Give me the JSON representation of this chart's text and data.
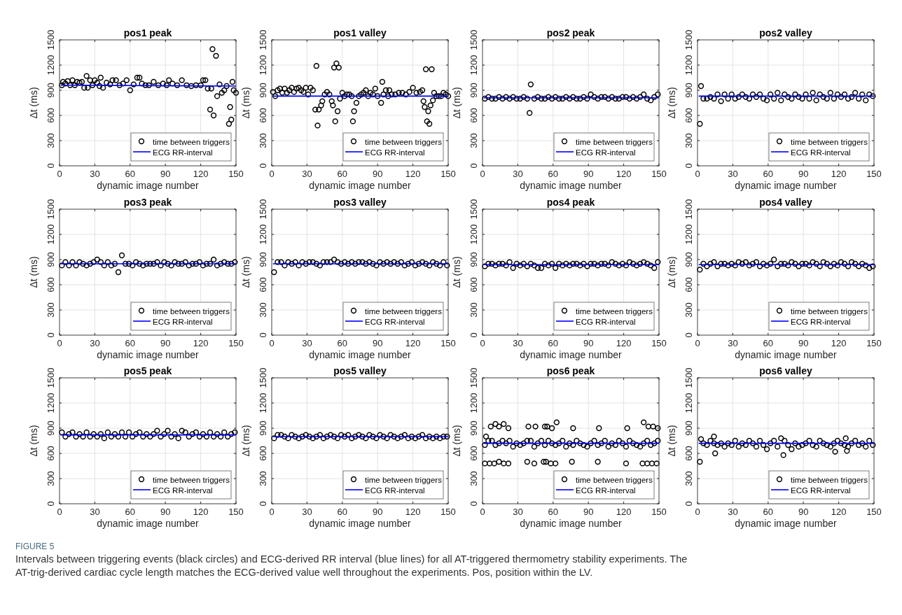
{
  "chart_data": [
    {
      "type": "scatter",
      "title": "pos1 peak",
      "xlabel": "dynamic image number",
      "ylabel": "Δt (ms)",
      "xlim": [
        0,
        150
      ],
      "xticks": [
        0,
        30,
        60,
        90,
        120,
        150
      ],
      "ylim": [
        0,
        1500
      ],
      "yticks": [
        0,
        300,
        600,
        900,
        1200,
        1500
      ],
      "grid": true,
      "legend": "bottom right",
      "marker": "circle",
      "series": [
        {
          "name": "time between triggers",
          "type": "scatter",
          "color": "#000000",
          "x": [
            2,
            3,
            5,
            7,
            9,
            11,
            13,
            15,
            17,
            19,
            21,
            23,
            24,
            26,
            28,
            30,
            32,
            34,
            35,
            37,
            40,
            43,
            45,
            48,
            51,
            54,
            57,
            60,
            63,
            66,
            68,
            70,
            73,
            76,
            80,
            84,
            88,
            91,
            93,
            96,
            100,
            104,
            108,
            112,
            116,
            120,
            122,
            124,
            126,
            128,
            129,
            130,
            131,
            133,
            134,
            136,
            138,
            140,
            142,
            144,
            145,
            146,
            147,
            148,
            150
          ],
          "values": [
            960,
            1000,
            980,
            1010,
            960,
            1020,
            960,
            1000,
            990,
            1000,
            930,
            1070,
            930,
            1020,
            960,
            1020,
            990,
            950,
            1050,
            930,
            990,
            970,
            1020,
            1020,
            960,
            980,
            1020,
            900,
            970,
            1050,
            1050,
            980,
            960,
            960,
            1000,
            960,
            980,
            960,
            1020,
            980,
            960,
            1020,
            960,
            950,
            960,
            960,
            1020,
            1020,
            920,
            670,
            920,
            1390,
            600,
            1310,
            830,
            970,
            870,
            900,
            950,
            500,
            700,
            550,
            1000,
            900,
            870
          ]
        },
        {
          "name": "ECG RR-interval",
          "type": "line",
          "marker": "none",
          "color": "#0000ff",
          "x": [
            1,
            150
          ],
          "values": [
            960,
            950
          ]
        }
      ]
    },
    {
      "type": "scatter",
      "title": "pos1 valley",
      "xlabel": "dynamic image number",
      "ylabel": "Δt (ms)",
      "xlim": [
        0,
        150
      ],
      "xticks": [
        0,
        30,
        60,
        90,
        120,
        150
      ],
      "ylim": [
        0,
        1500
      ],
      "yticks": [
        0,
        300,
        600,
        900,
        1200,
        1500
      ],
      "grid": true,
      "legend": "bottom right",
      "marker": "circle",
      "series": [
        {
          "name": "time between triggers",
          "type": "scatter",
          "color": "#000000",
          "x": [
            1,
            3,
            5,
            7,
            9,
            11,
            13,
            15,
            17,
            19,
            21,
            23,
            25,
            27,
            29,
            31,
            33,
            35,
            37,
            38,
            39,
            40,
            42,
            43,
            45,
            47,
            49,
            51,
            52,
            53,
            54,
            55,
            56,
            57,
            58,
            60,
            62,
            64,
            66,
            68,
            69,
            70,
            72,
            74,
            76,
            78,
            80,
            82,
            84,
            86,
            88,
            90,
            93,
            94,
            95,
            97,
            99,
            100,
            102,
            105,
            108,
            111,
            114,
            117,
            120,
            123,
            126,
            128,
            129,
            130,
            131,
            132,
            133,
            134,
            135,
            136,
            137,
            138,
            140,
            142,
            144,
            146,
            148,
            150
          ],
          "values": [
            880,
            830,
            900,
            920,
            870,
            920,
            870,
            900,
            930,
            880,
            920,
            930,
            900,
            880,
            930,
            850,
            930,
            900,
            670,
            1190,
            480,
            670,
            720,
            770,
            850,
            880,
            850,
            770,
            720,
            1170,
            530,
            1220,
            650,
            1170,
            800,
            870,
            830,
            850,
            850,
            830,
            530,
            650,
            750,
            830,
            850,
            870,
            900,
            830,
            870,
            850,
            920,
            830,
            750,
            1000,
            850,
            900,
            830,
            900,
            850,
            850,
            870,
            870,
            850,
            880,
            930,
            870,
            880,
            900,
            770,
            700,
            1150,
            530,
            650,
            500,
            720,
            1150,
            780,
            870,
            830,
            830,
            830,
            870,
            850,
            830
          ]
        },
        {
          "name": "ECG RR-interval",
          "type": "line",
          "marker": "none",
          "color": "#0000ff",
          "x": [
            1,
            150
          ],
          "values": [
            830,
            830
          ]
        }
      ]
    },
    {
      "type": "scatter",
      "title": "pos2 peak",
      "xlabel": "dynamic image number",
      "ylabel": "Δt (ms)",
      "xlim": [
        0,
        150
      ],
      "xticks": [
        0,
        30,
        60,
        90,
        120,
        150
      ],
      "ylim": [
        0,
        1500
      ],
      "yticks": [
        0,
        300,
        600,
        900,
        1200,
        1500
      ],
      "grid": true,
      "legend": "bottom right",
      "marker": "circle",
      "series": [
        {
          "name": "time between triggers",
          "type": "scatter",
          "color": "#000000",
          "x": [
            2,
            5,
            8,
            11,
            14,
            17,
            20,
            23,
            26,
            29,
            32,
            35,
            38,
            41,
            44,
            47,
            50,
            53,
            56,
            59,
            62,
            65,
            68,
            71,
            74,
            77,
            80,
            83,
            86,
            89,
            92,
            95,
            98,
            101,
            104,
            107,
            110,
            113,
            116,
            119,
            122,
            125,
            128,
            131,
            134,
            137,
            140,
            143,
            146,
            149,
            40
          ],
          "values": [
            800,
            820,
            800,
            800,
            820,
            800,
            820,
            800,
            820,
            800,
            800,
            820,
            800,
            970,
            800,
            820,
            800,
            800,
            820,
            800,
            820,
            800,
            800,
            820,
            800,
            820,
            800,
            800,
            820,
            800,
            850,
            820,
            800,
            820,
            820,
            800,
            820,
            800,
            800,
            820,
            820,
            800,
            820,
            800,
            820,
            850,
            800,
            780,
            820,
            850,
            630
          ]
        },
        {
          "name": "ECG RR-interval",
          "type": "line",
          "marker": "none",
          "color": "#0000ff",
          "x": [
            1,
            150
          ],
          "values": [
            810,
            810
          ]
        }
      ]
    },
    {
      "type": "scatter",
      "title": "pos2 valley",
      "xlabel": "dynamic image number",
      "ylabel": "Δt (ms)",
      "xlim": [
        0,
        150
      ],
      "xticks": [
        0,
        30,
        60,
        90,
        120,
        150
      ],
      "ylim": [
        0,
        1500
      ],
      "yticks": [
        0,
        300,
        600,
        900,
        1200,
        1500
      ],
      "grid": true,
      "legend": "bottom right",
      "marker": "circle",
      "series": [
        {
          "name": "time between triggers",
          "type": "scatter",
          "color": "#000000",
          "x": [
            2,
            3,
            5,
            8,
            11,
            14,
            17,
            20,
            23,
            26,
            29,
            32,
            35,
            38,
            41,
            44,
            47,
            50,
            53,
            56,
            59,
            62,
            65,
            68,
            71,
            74,
            77,
            80,
            83,
            86,
            89,
            92,
            95,
            98,
            101,
            104,
            107,
            110,
            113,
            116,
            119,
            122,
            125,
            128,
            131,
            134,
            137,
            140,
            143,
            146,
            149
          ],
          "values": [
            500,
            950,
            800,
            800,
            820,
            800,
            850,
            770,
            850,
            800,
            850,
            800,
            820,
            850,
            820,
            800,
            850,
            820,
            850,
            800,
            780,
            850,
            800,
            870,
            780,
            850,
            820,
            800,
            850,
            820,
            800,
            850,
            800,
            870,
            780,
            850,
            820,
            800,
            870,
            800,
            850,
            820,
            850,
            800,
            820,
            870,
            800,
            850,
            780,
            850,
            830
          ]
        },
        {
          "name": "ECG RR-interval",
          "type": "line",
          "marker": "none",
          "color": "#0000ff",
          "x": [
            1,
            150
          ],
          "values": [
            830,
            830
          ]
        }
      ]
    },
    {
      "type": "scatter",
      "title": "pos3 peak",
      "xlabel": "dynamic image number",
      "ylabel": "Δt (ms)",
      "xlim": [
        0,
        150
      ],
      "xticks": [
        0,
        30,
        60,
        90,
        120,
        150
      ],
      "ylim": [
        0,
        1500
      ],
      "yticks": [
        0,
        300,
        600,
        900,
        1200,
        1500
      ],
      "grid": true,
      "legend": "bottom right",
      "marker": "circle",
      "series": [
        {
          "name": "time between triggers",
          "type": "scatter",
          "color": "#000000",
          "x": [
            2,
            5,
            8,
            11,
            14,
            17,
            20,
            23,
            26,
            29,
            32,
            35,
            38,
            41,
            44,
            47,
            50,
            53,
            56,
            59,
            62,
            65,
            68,
            71,
            74,
            77,
            80,
            83,
            86,
            89,
            92,
            95,
            98,
            101,
            104,
            107,
            110,
            113,
            116,
            119,
            122,
            125,
            128,
            131,
            134,
            137,
            140,
            143,
            146,
            149
          ],
          "values": [
            830,
            870,
            830,
            870,
            830,
            870,
            850,
            830,
            850,
            870,
            900,
            870,
            830,
            870,
            830,
            850,
            750,
            950,
            850,
            850,
            830,
            870,
            850,
            830,
            850,
            850,
            850,
            870,
            830,
            870,
            850,
            830,
            870,
            850,
            850,
            870,
            830,
            850,
            850,
            870,
            830,
            850,
            850,
            900,
            830,
            850,
            870,
            850,
            850,
            870
          ]
        },
        {
          "name": "ECG RR-interval",
          "type": "line",
          "marker": "none",
          "color": "#0000ff",
          "x": [
            1,
            150
          ],
          "values": [
            850,
            850
          ]
        }
      ]
    },
    {
      "type": "scatter",
      "title": "pos3 valley",
      "xlabel": "dynamic image number",
      "ylabel": "Δt (ms)",
      "xlim": [
        0,
        150
      ],
      "xticks": [
        0,
        30,
        60,
        90,
        120,
        150
      ],
      "ylim": [
        0,
        1500
      ],
      "yticks": [
        0,
        300,
        600,
        900,
        1200,
        1500
      ],
      "grid": true,
      "legend": "bottom right",
      "marker": "circle",
      "series": [
        {
          "name": "time between triggers",
          "type": "scatter",
          "color": "#000000",
          "x": [
            2,
            5,
            8,
            11,
            14,
            17,
            20,
            23,
            26,
            29,
            32,
            35,
            38,
            41,
            44,
            47,
            50,
            53,
            56,
            59,
            62,
            65,
            68,
            71,
            74,
            77,
            80,
            83,
            86,
            89,
            92,
            95,
            98,
            101,
            104,
            107,
            110,
            113,
            116,
            119,
            122,
            125,
            128,
            131,
            134,
            137,
            140,
            143,
            146,
            149
          ],
          "values": [
            750,
            870,
            870,
            830,
            870,
            850,
            870,
            830,
            870,
            850,
            870,
            870,
            850,
            830,
            870,
            870,
            870,
            900,
            870,
            850,
            870,
            850,
            870,
            850,
            870,
            870,
            850,
            870,
            850,
            830,
            870,
            850,
            870,
            850,
            870,
            850,
            870,
            830,
            850,
            870,
            830,
            850,
            870,
            850,
            830,
            870,
            850,
            830,
            870,
            830
          ]
        },
        {
          "name": "ECG RR-interval",
          "type": "line",
          "marker": "none",
          "color": "#0000ff",
          "x": [
            1,
            150
          ],
          "values": [
            850,
            850
          ]
        }
      ]
    },
    {
      "type": "scatter",
      "title": "pos4 peak",
      "xlabel": "dynamic image number",
      "ylabel": "Δt (ms)",
      "xlim": [
        0,
        150
      ],
      "xticks": [
        0,
        30,
        60,
        90,
        120,
        150
      ],
      "ylim": [
        0,
        1500
      ],
      "yticks": [
        0,
        300,
        600,
        900,
        1200,
        1500
      ],
      "grid": true,
      "legend": "bottom right",
      "marker": "circle",
      "series": [
        {
          "name": "time between triggers",
          "type": "scatter",
          "color": "#000000",
          "x": [
            2,
            5,
            8,
            11,
            14,
            17,
            20,
            23,
            26,
            29,
            32,
            35,
            38,
            41,
            44,
            47,
            50,
            53,
            56,
            59,
            62,
            65,
            68,
            71,
            74,
            77,
            80,
            83,
            86,
            89,
            92,
            95,
            98,
            101,
            104,
            107,
            110,
            113,
            116,
            119,
            122,
            125,
            128,
            131,
            134,
            137,
            140,
            143,
            146,
            149
          ],
          "values": [
            820,
            850,
            850,
            830,
            850,
            850,
            830,
            870,
            800,
            850,
            830,
            850,
            820,
            850,
            830,
            800,
            800,
            850,
            830,
            850,
            800,
            850,
            830,
            850,
            830,
            850,
            850,
            830,
            850,
            820,
            850,
            850,
            830,
            850,
            850,
            830,
            870,
            850,
            830,
            850,
            830,
            870,
            850,
            830,
            850,
            870,
            850,
            830,
            800,
            870
          ]
        },
        {
          "name": "ECG RR-interval",
          "type": "line",
          "marker": "none",
          "color": "#0000ff",
          "x": [
            1,
            150
          ],
          "values": [
            840,
            840
          ]
        }
      ]
    },
    {
      "type": "scatter",
      "title": "pos4 valley",
      "xlabel": "dynamic image number",
      "ylabel": "Δt (ms)",
      "xlim": [
        0,
        150
      ],
      "xticks": [
        0,
        30,
        60,
        90,
        120,
        150
      ],
      "ylim": [
        0,
        1500
      ],
      "yticks": [
        0,
        300,
        600,
        900,
        1200,
        1500
      ],
      "grid": true,
      "legend": "bottom right",
      "marker": "circle",
      "series": [
        {
          "name": "time between triggers",
          "type": "scatter",
          "color": "#000000",
          "x": [
            2,
            5,
            8,
            11,
            14,
            17,
            20,
            23,
            26,
            29,
            32,
            35,
            38,
            41,
            44,
            47,
            50,
            53,
            56,
            59,
            62,
            65,
            68,
            71,
            74,
            77,
            80,
            83,
            86,
            89,
            92,
            95,
            98,
            101,
            104,
            107,
            110,
            113,
            116,
            119,
            122,
            125,
            128,
            131,
            134,
            137,
            140,
            143,
            146,
            149
          ],
          "values": [
            780,
            850,
            820,
            850,
            870,
            820,
            850,
            850,
            830,
            850,
            830,
            870,
            850,
            870,
            830,
            850,
            870,
            820,
            850,
            830,
            850,
            900,
            820,
            850,
            850,
            830,
            870,
            850,
            820,
            850,
            850,
            830,
            870,
            850,
            820,
            870,
            850,
            820,
            850,
            830,
            870,
            850,
            820,
            870,
            850,
            820,
            850,
            830,
            800,
            820
          ]
        },
        {
          "name": "ECG RR-interval",
          "type": "line",
          "marker": "none",
          "color": "#0000ff",
          "x": [
            1,
            150
          ],
          "values": [
            840,
            840
          ]
        }
      ]
    },
    {
      "type": "scatter",
      "title": "pos5 peak",
      "xlabel": "dynamic image number",
      "ylabel": "Δt (ms)",
      "xlim": [
        0,
        150
      ],
      "xticks": [
        0,
        30,
        60,
        90,
        120,
        150
      ],
      "ylim": [
        0,
        1500
      ],
      "yticks": [
        0,
        300,
        600,
        900,
        1200,
        1500
      ],
      "grid": true,
      "legend": "bottom right",
      "marker": "circle",
      "series": [
        {
          "name": "time between triggers",
          "type": "scatter",
          "color": "#000000",
          "x": [
            2,
            5,
            8,
            11,
            14,
            17,
            20,
            23,
            26,
            29,
            32,
            35,
            38,
            41,
            44,
            47,
            50,
            53,
            56,
            59,
            62,
            65,
            68,
            71,
            74,
            77,
            80,
            83,
            86,
            89,
            92,
            95,
            98,
            101,
            104,
            107,
            110,
            113,
            116,
            119,
            122,
            125,
            128,
            131,
            134,
            137,
            140,
            143,
            146,
            149
          ],
          "values": [
            850,
            800,
            830,
            850,
            800,
            830,
            800,
            850,
            800,
            830,
            800,
            830,
            780,
            850,
            800,
            830,
            800,
            850,
            800,
            850,
            800,
            830,
            850,
            800,
            830,
            800,
            830,
            870,
            800,
            830,
            870,
            800,
            830,
            780,
            870,
            850,
            800,
            830,
            850,
            800,
            830,
            800,
            850,
            800,
            830,
            800,
            850,
            800,
            830,
            850
          ]
        },
        {
          "name": "ECG RR-interval",
          "type": "line",
          "marker": "none",
          "color": "#0000ff",
          "x": [
            1,
            150
          ],
          "values": [
            820,
            820
          ]
        }
      ]
    },
    {
      "type": "scatter",
      "title": "pos5 valley",
      "xlabel": "dynamic image number",
      "ylabel": "Δt (ms)",
      "xlim": [
        0,
        150
      ],
      "xticks": [
        0,
        30,
        60,
        90,
        120,
        150
      ],
      "ylim": [
        0,
        1500
      ],
      "yticks": [
        0,
        300,
        600,
        900,
        1200,
        1500
      ],
      "grid": true,
      "legend": "bottom right",
      "marker": "circle",
      "series": [
        {
          "name": "time between triggers",
          "type": "scatter",
          "color": "#000000",
          "x": [
            2,
            5,
            8,
            11,
            14,
            17,
            20,
            23,
            26,
            29,
            32,
            35,
            38,
            41,
            44,
            47,
            50,
            53,
            56,
            59,
            62,
            65,
            68,
            71,
            74,
            77,
            80,
            83,
            86,
            89,
            92,
            95,
            98,
            101,
            104,
            107,
            110,
            113,
            116,
            119,
            122,
            125,
            128,
            131,
            134,
            137,
            140,
            143,
            146,
            149
          ],
          "values": [
            780,
            820,
            820,
            800,
            780,
            820,
            800,
            780,
            800,
            820,
            800,
            780,
            800,
            820,
            780,
            800,
            820,
            800,
            780,
            820,
            800,
            820,
            780,
            800,
            820,
            800,
            780,
            820,
            800,
            780,
            820,
            800,
            780,
            820,
            800,
            780,
            800,
            820,
            780,
            800,
            780,
            800,
            820,
            780,
            800,
            780,
            800,
            780,
            800,
            800
          ]
        },
        {
          "name": "ECG RR-interval",
          "type": "line",
          "marker": "none",
          "color": "#0000ff",
          "x": [
            1,
            150
          ],
          "values": [
            800,
            800
          ]
        }
      ]
    },
    {
      "type": "scatter",
      "title": "pos6 peak",
      "xlabel": "dynamic image number",
      "ylabel": "Δt (ms)",
      "xlim": [
        0,
        150
      ],
      "xticks": [
        0,
        30,
        60,
        90,
        120,
        150
      ],
      "ylim": [
        0,
        1500
      ],
      "yticks": [
        0,
        300,
        600,
        900,
        1200,
        1500
      ],
      "grid": true,
      "legend": "bottom right",
      "marker": "circle",
      "series": [
        {
          "name": "time between triggers",
          "type": "scatter",
          "color": "#000000",
          "x": [
            2,
            5,
            8,
            11,
            14,
            17,
            20,
            23,
            26,
            29,
            32,
            35,
            38,
            41,
            44,
            47,
            50,
            53,
            56,
            59,
            62,
            65,
            68,
            71,
            74,
            77,
            80,
            83,
            86,
            89,
            92,
            95,
            98,
            101,
            104,
            107,
            110,
            113,
            116,
            119,
            122,
            125,
            128,
            131,
            134,
            137,
            140,
            143,
            146,
            149,
            7,
            11,
            14,
            18,
            22,
            39,
            45,
            53,
            55,
            59,
            63,
            77,
            99,
            123,
            137,
            141,
            145,
            149,
            2,
            6,
            10,
            14,
            18,
            22,
            38,
            44,
            52,
            54,
            58,
            62,
            76,
            98,
            122,
            136,
            140,
            144,
            148,
            3
          ],
          "values": [
            700,
            750,
            750,
            700,
            720,
            750,
            720,
            750,
            680,
            720,
            700,
            720,
            750,
            750,
            680,
            720,
            750,
            700,
            750,
            720,
            700,
            720,
            750,
            680,
            720,
            700,
            750,
            720,
            700,
            680,
            720,
            750,
            700,
            720,
            750,
            680,
            720,
            700,
            750,
            720,
            680,
            750,
            720,
            700,
            680,
            720,
            750,
            700,
            720,
            750,
            920,
            950,
            920,
            950,
            900,
            920,
            920,
            920,
            920,
            900,
            970,
            900,
            900,
            900,
            970,
            920,
            920,
            900,
            480,
            480,
            480,
            500,
            480,
            480,
            500,
            480,
            500,
            500,
            480,
            480,
            500,
            500,
            480,
            480,
            480,
            480,
            480,
            800
          ]
        },
        {
          "name": "ECG RR-interval",
          "type": "line",
          "marker": "none",
          "color": "#0000ff",
          "x": [
            1,
            150
          ],
          "values": [
            720,
            720
          ]
        }
      ]
    },
    {
      "type": "scatter",
      "title": "pos6 valley",
      "xlabel": "dynamic image number",
      "ylabel": "Δt (ms)",
      "xlim": [
        0,
        150
      ],
      "xticks": [
        0,
        30,
        60,
        90,
        120,
        150
      ],
      "ylim": [
        0,
        1500
      ],
      "yticks": [
        0,
        300,
        600,
        900,
        1200,
        1500
      ],
      "grid": true,
      "legend": "bottom right",
      "marker": "circle",
      "annotations": [
        "FIGURE 5",
        "Intervals between triggering events (black circles) and ECG-derived RR interval (blue lines) for all AT-triggered thermometry stability experiments. The AT-trig-derived cardiac cycle length matches the ECG-derived value well throughout the experiments. Pos, position within the LV."
      ],
      "series": [
        {
          "name": "time between triggers",
          "type": "scatter",
          "color": "#000000",
          "x": [
            2,
            5,
            8,
            11,
            14,
            17,
            20,
            23,
            26,
            29,
            32,
            35,
            38,
            41,
            44,
            47,
            50,
            53,
            56,
            59,
            62,
            65,
            68,
            71,
            74,
            77,
            80,
            83,
            86,
            89,
            92,
            95,
            98,
            101,
            104,
            107,
            110,
            113,
            116,
            119,
            122,
            125,
            128,
            131,
            134,
            137,
            140,
            143,
            146,
            149,
            3,
            14,
            15,
            73,
            117,
            126,
            127
          ],
          "values": [
            500,
            720,
            700,
            750,
            720,
            700,
            720,
            680,
            720,
            700,
            750,
            680,
            720,
            700,
            750,
            720,
            680,
            750,
            700,
            650,
            720,
            750,
            680,
            780,
            750,
            700,
            650,
            720,
            680,
            700,
            720,
            750,
            700,
            680,
            750,
            720,
            700,
            680,
            720,
            750,
            720,
            700,
            680,
            720,
            750,
            700,
            720,
            680,
            750,
            700,
            770,
            800,
            600,
            580,
            620,
            780,
            630
          ]
        },
        {
          "name": "ECG RR-interval",
          "type": "line",
          "marker": "none",
          "color": "#0000ff",
          "x": [
            1,
            150
          ],
          "values": [
            720,
            720
          ]
        }
      ]
    }
  ]
}
